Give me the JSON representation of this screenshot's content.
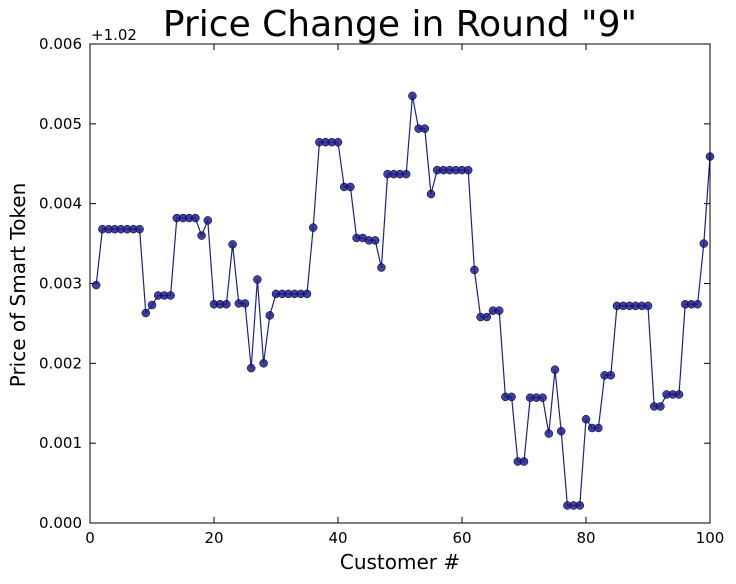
{
  "chart_data": {
    "type": "line",
    "title": "Price Change in Round \"9\"",
    "xlabel": "Customer #",
    "ylabel": "Price of Smart Token",
    "y_offset_label": "+1.02",
    "xlim": [
      0,
      100
    ],
    "ylim": [
      0.0,
      0.006
    ],
    "grid": false,
    "x_ticks": [
      0,
      20,
      40,
      60,
      80,
      100
    ],
    "x_tick_labels": [
      "0",
      "20",
      "40",
      "60",
      "80",
      "100"
    ],
    "y_ticks": [
      0.0,
      0.001,
      0.002,
      0.003,
      0.004,
      0.005,
      0.006
    ],
    "y_tick_labels": [
      "0.000",
      "0.001",
      "0.002",
      "0.003",
      "0.004",
      "0.005",
      "0.006"
    ],
    "series": [
      {
        "color": "#1f1f8f",
        "marker": "circle",
        "x": [
          1,
          2,
          3,
          4,
          5,
          6,
          7,
          8,
          9,
          10,
          11,
          12,
          13,
          14,
          15,
          16,
          17,
          18,
          19,
          20,
          21,
          22,
          23,
          24,
          25,
          26,
          27,
          28,
          29,
          30,
          31,
          32,
          33,
          34,
          35,
          36,
          37,
          38,
          39,
          40,
          41,
          42,
          43,
          44,
          45,
          46,
          47,
          48,
          49,
          50,
          51,
          52,
          53,
          54,
          55,
          56,
          57,
          58,
          59,
          60,
          61,
          62,
          63,
          64,
          65,
          66,
          67,
          68,
          69,
          70,
          71,
          72,
          73,
          74,
          75,
          76,
          77,
          78,
          79,
          80,
          81,
          82,
          83,
          84,
          85,
          86,
          87,
          88,
          89,
          90,
          91,
          92,
          93,
          94,
          95,
          96,
          97,
          98,
          99,
          100
        ],
        "values": [
          0.00298,
          0.00368,
          0.00368,
          0.00368,
          0.00368,
          0.00368,
          0.00368,
          0.00368,
          0.00263,
          0.00273,
          0.00285,
          0.00285,
          0.00285,
          0.00382,
          0.00382,
          0.00382,
          0.00382,
          0.0036,
          0.00379,
          0.00274,
          0.00274,
          0.00274,
          0.00349,
          0.00275,
          0.00275,
          0.00194,
          0.00305,
          0.002,
          0.0026,
          0.00287,
          0.00287,
          0.00287,
          0.00287,
          0.00287,
          0.00287,
          0.0037,
          0.00477,
          0.00477,
          0.00477,
          0.00477,
          0.00421,
          0.00421,
          0.00357,
          0.00357,
          0.00354,
          0.00354,
          0.0032,
          0.00437,
          0.00437,
          0.00437,
          0.00437,
          0.00535,
          0.00494,
          0.00494,
          0.00412,
          0.00442,
          0.00442,
          0.00442,
          0.00442,
          0.00442,
          0.00442,
          0.00317,
          0.00258,
          0.00258,
          0.00266,
          0.00266,
          0.00158,
          0.00158,
          0.00077,
          0.00077,
          0.00157,
          0.00157,
          0.00157,
          0.00112,
          0.00192,
          0.00115,
          0.00022,
          0.00022,
          0.00022,
          0.0013,
          0.00119,
          0.00119,
          0.00185,
          0.00185,
          0.00272,
          0.00272,
          0.00272,
          0.00272,
          0.00272,
          0.00272,
          0.00146,
          0.00146,
          0.00161,
          0.00161,
          0.00161,
          0.00274,
          0.00274,
          0.00274,
          0.0035,
          0.00459
        ]
      }
    ]
  }
}
